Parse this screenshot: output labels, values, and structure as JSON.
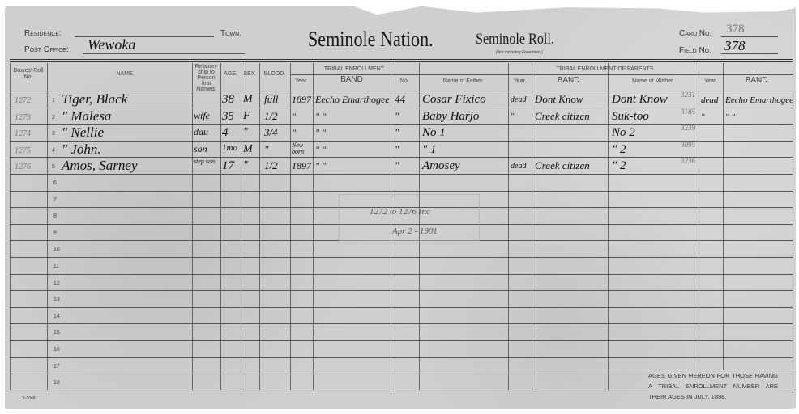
{
  "header": {
    "residence_label": "Residence:",
    "town_label": "Town.",
    "post_office_label": "Post Office:",
    "post_office_value": "Wewoka",
    "title": "Seminole Nation.",
    "roll_title": "Seminole Roll.",
    "roll_subtitle": "(Not including Freedmen.)",
    "card_no_label": "Card No.",
    "card_no_value": "378",
    "field_no_label": "Field No.",
    "field_no_value": "378"
  },
  "columns": {
    "roll_no": "Dawes' Roll No.",
    "name": "NAME.",
    "relationship": "Relation-ship to Person first Named.",
    "age": "AGE.",
    "sex": "SEX.",
    "blood": "BLOOD.",
    "tribal_enrollment": "TRIBAL ENROLLMENT.",
    "year": "Year.",
    "band": "BAND",
    "no": "No.",
    "parents": "TRIBAL ENROLLMENT OF PARENTS.",
    "father": "Name of Father.",
    "father_year": "Year.",
    "father_band": "BAND.",
    "mother": "Name of Mother.",
    "mother_year": "Year.",
    "mother_band": "BAND."
  },
  "rows": [
    {
      "line": "1",
      "roll": "1272",
      "name": "Tiger, Black",
      "rel": "",
      "age": "38",
      "sex": "M",
      "blood": "full",
      "year": "1897",
      "band": "Eecho Emarthogee",
      "no": "44",
      "father": "Cosar Fixico",
      "fyear": "dead",
      "fband": "Dont Know",
      "mother": "Dont Know",
      "mnote": "3231",
      "myear": "dead",
      "mband": "Eecho Emarthogee"
    },
    {
      "line": "2",
      "roll": "1273",
      "name": "\"    Malesa",
      "rel": "wife",
      "age": "35",
      "sex": "F",
      "blood": "1/2",
      "year": "\"",
      "band": "\"     \"",
      "no": "\"",
      "father": "Baby Harjo",
      "fyear": "\"",
      "fband": "Creek citizen",
      "mother": "Suk-too",
      "mnote": "3185",
      "myear": "\"",
      "mband": "\"    \""
    },
    {
      "line": "3",
      "roll": "1274",
      "name": "\"    Nellie",
      "rel": "dau",
      "age": "4",
      "sex": "\"",
      "blood": "3/4",
      "year": "\"",
      "band": "\"     \"",
      "no": "\"",
      "father": "No 1",
      "fyear": "",
      "fband": "",
      "mother": "No 2",
      "mnote": "3239",
      "myear": "",
      "mband": ""
    },
    {
      "line": "4",
      "roll": "1275",
      "name": "\"    John.",
      "rel": "son",
      "age": "1mo",
      "sex": "M",
      "blood": "\"",
      "year": "New born",
      "band": "\"     \"",
      "no": "\"",
      "father": "\" 1",
      "fyear": "",
      "fband": "",
      "mother": "\" 2",
      "mnote": "3095",
      "myear": "",
      "mband": ""
    },
    {
      "line": "5",
      "roll": "1276",
      "name": "Amos, Sarney",
      "rel": "step son",
      "age": "17",
      "sex": "\"",
      "blood": "1/2",
      "year": "1897",
      "band": "\"     \"",
      "no": "\"",
      "father": "Amosey",
      "fyear": "dead",
      "fband": "Creek citizen",
      "mother": "\" 2",
      "mnote": "3236",
      "myear": "",
      "mband": ""
    }
  ],
  "empty_lines": [
    "6",
    "7",
    "8",
    "9",
    "10",
    "11",
    "12",
    "13",
    "14",
    "15",
    "16",
    "17",
    "18"
  ],
  "annotation": {
    "range": "1272 to 1276 Inc",
    "date": "Apr 2 - 1901"
  },
  "footer_note": "AGES GIVEN HEREON FOR THOSE HAVING A TRIBAL ENROLLMENT NUMBER ARE THEIR AGES IN JULY, 1898.",
  "form_no": "5-3046"
}
